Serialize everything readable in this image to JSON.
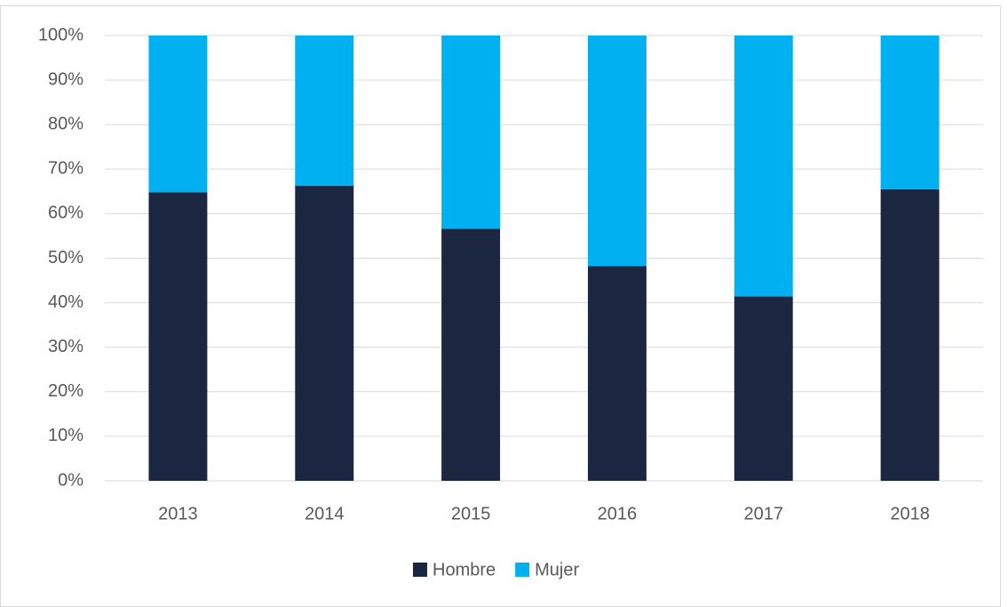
{
  "chart_data": {
    "type": "stacked_bar",
    "categories": [
      "2013",
      "2014",
      "2015",
      "2016",
      "2017",
      "2018"
    ],
    "series": [
      {
        "name": "Hombre",
        "color": "#1b2741",
        "values": [
          64.8,
          66.3,
          56.6,
          48.2,
          41.4,
          65.5
        ]
      },
      {
        "name": "Mujer",
        "color": "#00b0f0",
        "values": [
          35.2,
          33.7,
          43.4,
          51.8,
          58.6,
          34.5
        ]
      }
    ],
    "ylim": [
      0,
      100
    ],
    "yticks": [
      {
        "value": 0,
        "label": "0%"
      },
      {
        "value": 10,
        "label": "10%"
      },
      {
        "value": 20,
        "label": "20%"
      },
      {
        "value": 30,
        "label": "30%"
      },
      {
        "value": 40,
        "label": "40%"
      },
      {
        "value": 50,
        "label": "50%"
      },
      {
        "value": 60,
        "label": "60%"
      },
      {
        "value": 70,
        "label": "70%"
      },
      {
        "value": 80,
        "label": "80%"
      },
      {
        "value": 90,
        "label": "90%"
      },
      {
        "value": 100,
        "label": "100%"
      }
    ],
    "grid": true,
    "legend": "bottom"
  }
}
